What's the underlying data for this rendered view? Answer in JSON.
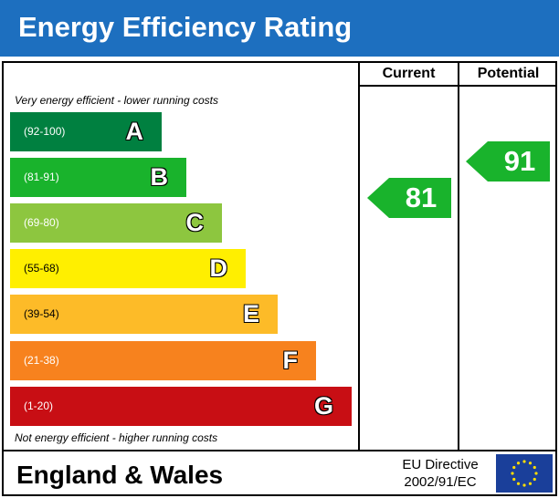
{
  "title": "Energy Efficiency Rating",
  "columns": {
    "current": "Current",
    "potential": "Potential"
  },
  "notes": {
    "top": "Very energy efficient - lower running costs",
    "bottom": "Not energy efficient - higher running costs"
  },
  "footer": {
    "region": "England & Wales",
    "directive_line1": "EU Directive",
    "directive_line2": "2002/91/EC",
    "flag_icon": "eu-flag-icon"
  },
  "chart_data": {
    "type": "bar",
    "categories": [
      "A",
      "B",
      "C",
      "D",
      "E",
      "F",
      "G"
    ],
    "bands": [
      {
        "letter": "A",
        "range": "(92-100)",
        "min": 92,
        "max": 100,
        "color": "#008040",
        "range_color": "#ffffff"
      },
      {
        "letter": "B",
        "range": "(81-91)",
        "min": 81,
        "max": 91,
        "color": "#19b32c",
        "range_color": "#ffffff"
      },
      {
        "letter": "C",
        "range": "(69-80)",
        "min": 69,
        "max": 80,
        "color": "#8dc63f",
        "range_color": "#ffffff"
      },
      {
        "letter": "D",
        "range": "(55-68)",
        "min": 55,
        "max": 68,
        "color": "#ffef00",
        "range_color": "#000000"
      },
      {
        "letter": "E",
        "range": "(39-54)",
        "min": 39,
        "max": 54,
        "color": "#fdbb28",
        "range_color": "#000000"
      },
      {
        "letter": "F",
        "range": "(21-38)",
        "min": 21,
        "max": 38,
        "color": "#f7821e",
        "range_color": "#ffffff"
      },
      {
        "letter": "G",
        "range": "(1-20)",
        "min": 1,
        "max": 20,
        "color": "#c80e14",
        "range_color": "#ffffff"
      }
    ],
    "current": {
      "value": 81,
      "band": "B",
      "color": "#19b32c"
    },
    "potential": {
      "value": 91,
      "band": "B",
      "color": "#19b32c"
    }
  }
}
